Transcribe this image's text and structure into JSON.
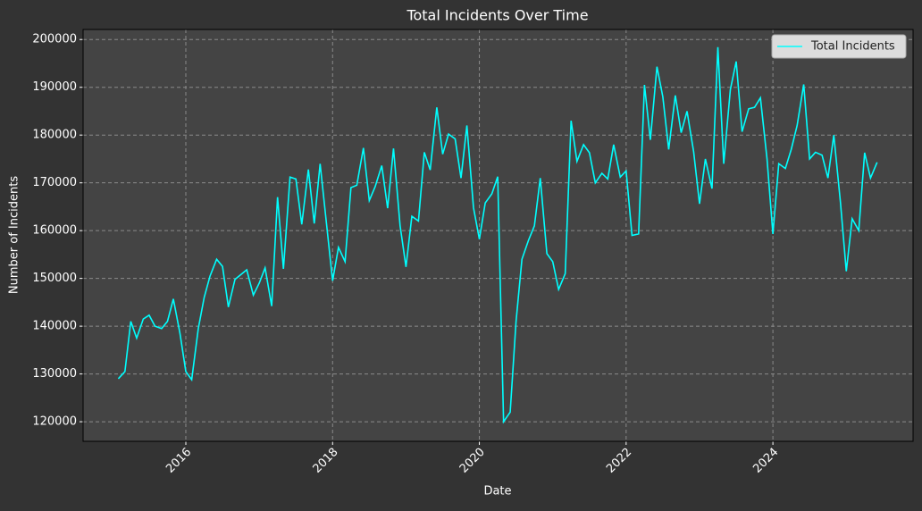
{
  "chart_data": {
    "type": "line",
    "title": "Total Incidents Over Time",
    "xlabel": "Date",
    "ylabel": "Number of Incidents",
    "x": [
      2015.08,
      2015.17,
      2015.25,
      2015.33,
      2015.42,
      2015.5,
      2015.58,
      2015.67,
      2015.75,
      2015.83,
      2015.92,
      2016.0,
      2016.08,
      2016.17,
      2016.25,
      2016.33,
      2016.42,
      2016.5,
      2016.58,
      2016.67,
      2016.75,
      2016.83,
      2016.92,
      2017.0,
      2017.08,
      2017.17,
      2017.25,
      2017.33,
      2017.42,
      2017.5,
      2017.58,
      2017.67,
      2017.75,
      2017.83,
      2017.92,
      2018.0,
      2018.08,
      2018.17,
      2018.25,
      2018.33,
      2018.42,
      2018.5,
      2018.58,
      2018.67,
      2018.75,
      2018.83,
      2018.92,
      2019.0,
      2019.08,
      2019.17,
      2019.25,
      2019.33,
      2019.42,
      2019.5,
      2019.58,
      2019.67,
      2019.75,
      2019.83,
      2019.92,
      2020.0,
      2020.08,
      2020.17,
      2020.25,
      2020.33,
      2020.42,
      2020.5,
      2020.58,
      2020.67,
      2020.75,
      2020.83,
      2020.92,
      2021.0,
      2021.08,
      2021.17,
      2021.25,
      2021.33,
      2021.42,
      2021.5,
      2021.58,
      2021.67,
      2021.75,
      2021.83,
      2021.92,
      2022.0,
      2022.08,
      2022.17,
      2022.25,
      2022.33,
      2022.42,
      2022.5,
      2022.58,
      2022.67,
      2022.75,
      2022.83,
      2022.92,
      2023.0,
      2023.08,
      2023.17,
      2023.25,
      2023.33,
      2023.42,
      2023.5,
      2023.58,
      2023.67,
      2023.75,
      2023.83,
      2023.92,
      2024.0,
      2024.08,
      2024.17,
      2024.25,
      2024.33,
      2024.42,
      2024.5,
      2024.58,
      2024.67,
      2024.75,
      2024.83,
      2024.92,
      2025.0,
      2025.08,
      2025.17,
      2025.25,
      2025.33,
      2025.42
    ],
    "series": [
      {
        "name": "Total Incidents",
        "color": "#00ffff",
        "values": [
          129000,
          130500,
          141000,
          137500,
          141500,
          142300,
          140000,
          139500,
          141000,
          145700,
          138500,
          130500,
          128800,
          139500,
          146000,
          150500,
          154000,
          152500,
          144000,
          149800,
          150800,
          151800,
          146500,
          149000,
          152200,
          144200,
          167000,
          152000,
          171200,
          170800,
          161300,
          172800,
          161500,
          174000,
          161000,
          149500,
          156500,
          153500,
          169000,
          169500,
          177300,
          166300,
          169200,
          173600,
          164700,
          177200,
          161000,
          152400,
          163000,
          162000,
          176400,
          172700,
          185800,
          176000,
          180200,
          179200,
          171000,
          182000,
          164800,
          158200,
          165800,
          167700,
          171300,
          120000,
          122000,
          141000,
          154000,
          158000,
          161000,
          171000,
          155200,
          153500,
          147700,
          151000,
          183000,
          174500,
          178000,
          176300,
          170000,
          172000,
          170800,
          178000,
          171200,
          172500,
          159000,
          159300,
          190500,
          179000,
          194300,
          188000,
          177000,
          188300,
          180500,
          185000,
          176500,
          165600,
          175000,
          168800,
          198400,
          174000,
          189500,
          195400,
          180700,
          185500,
          185800,
          187800,
          175000,
          159300,
          174000,
          173000,
          177000,
          182000,
          190600,
          175000,
          176400,
          175800,
          171000,
          180000,
          166000,
          151500,
          162500,
          160000,
          176300,
          171000,
          174300
        ]
      }
    ],
    "xlim": [
      2014.6,
      2025.91
    ],
    "xticks": [
      2016,
      2018,
      2020,
      2022,
      2024
    ],
    "ylim": [
      115900,
      202100
    ],
    "yticks": [
      120000,
      130000,
      140000,
      150000,
      160000,
      170000,
      180000,
      190000,
      200000
    ],
    "grid": true,
    "legend": "upper right"
  }
}
